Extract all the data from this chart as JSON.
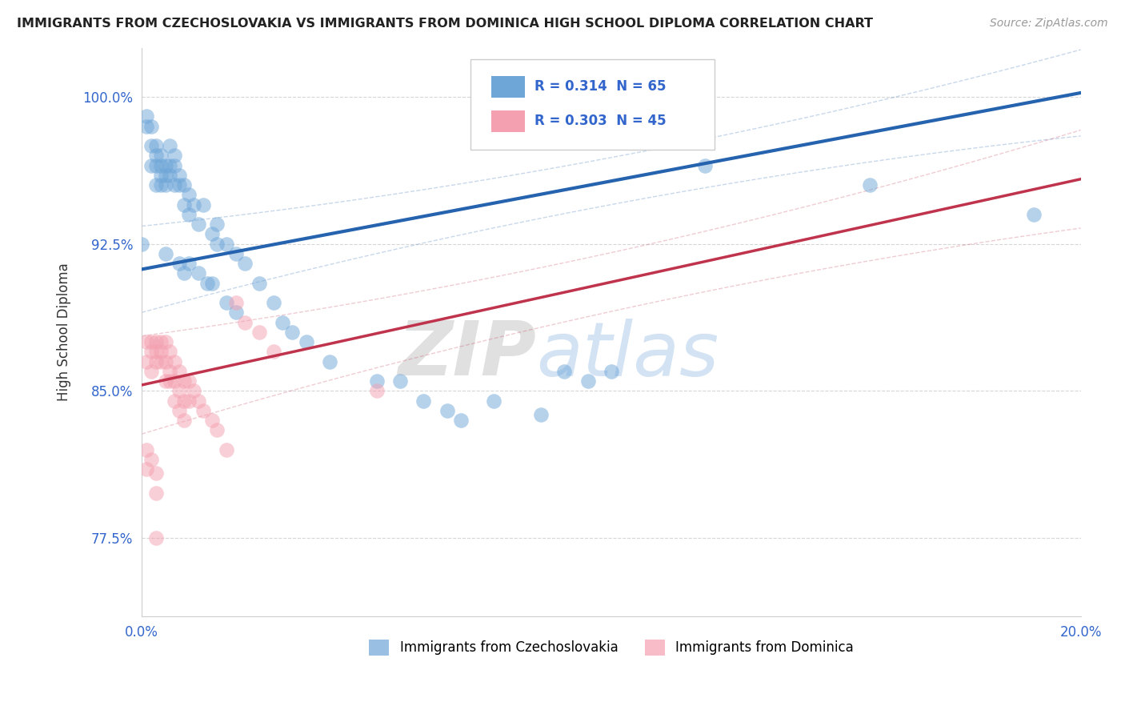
{
  "title": "IMMIGRANTS FROM CZECHOSLOVAKIA VS IMMIGRANTS FROM DOMINICA HIGH SCHOOL DIPLOMA CORRELATION CHART",
  "source": "Source: ZipAtlas.com",
  "ylabel": "High School Diploma",
  "xlabel": "",
  "xlim": [
    0.0,
    0.2
  ],
  "ylim": [
    0.735,
    1.025
  ],
  "ytick_labels": [
    "77.5%",
    "85.0%",
    "92.5%",
    "100.0%"
  ],
  "yticks": [
    0.775,
    0.85,
    0.925,
    1.0
  ],
  "legend1_label": "Immigrants from Czechoslovakia",
  "legend2_label": "Immigrants from Dominica",
  "r1": 0.314,
  "n1": 65,
  "r2": 0.303,
  "n2": 45,
  "blue_color": "#6EA6D8",
  "pink_color": "#F4A0B0",
  "blue_line_color": "#2563AE",
  "pink_line_color": "#C0334D",
  "ci_blue_color": "#7ABCE8",
  "ci_pink_color": "#F0A0B0",
  "watermark_zip": "ZIP",
  "watermark_atlas": "atlas",
  "blue_scatter": [
    [
      0.001,
      0.99
    ],
    [
      0.001,
      0.985
    ],
    [
      0.002,
      0.975
    ],
    [
      0.002,
      0.985
    ],
    [
      0.002,
      0.965
    ],
    [
      0.003,
      0.975
    ],
    [
      0.003,
      0.97
    ],
    [
      0.003,
      0.965
    ],
    [
      0.003,
      0.955
    ],
    [
      0.004,
      0.97
    ],
    [
      0.004,
      0.965
    ],
    [
      0.004,
      0.96
    ],
    [
      0.004,
      0.955
    ],
    [
      0.005,
      0.965
    ],
    [
      0.005,
      0.96
    ],
    [
      0.005,
      0.955
    ],
    [
      0.006,
      0.975
    ],
    [
      0.006,
      0.965
    ],
    [
      0.006,
      0.96
    ],
    [
      0.007,
      0.97
    ],
    [
      0.007,
      0.965
    ],
    [
      0.007,
      0.955
    ],
    [
      0.008,
      0.96
    ],
    [
      0.008,
      0.955
    ],
    [
      0.009,
      0.955
    ],
    [
      0.009,
      0.945
    ],
    [
      0.01,
      0.95
    ],
    [
      0.01,
      0.94
    ],
    [
      0.011,
      0.945
    ],
    [
      0.012,
      0.935
    ],
    [
      0.013,
      0.945
    ],
    [
      0.015,
      0.93
    ],
    [
      0.016,
      0.935
    ],
    [
      0.016,
      0.925
    ],
    [
      0.018,
      0.925
    ],
    [
      0.02,
      0.92
    ],
    [
      0.022,
      0.915
    ],
    [
      0.025,
      0.905
    ],
    [
      0.028,
      0.895
    ],
    [
      0.03,
      0.885
    ],
    [
      0.032,
      0.88
    ],
    [
      0.035,
      0.875
    ],
    [
      0.04,
      0.865
    ],
    [
      0.05,
      0.855
    ],
    [
      0.055,
      0.855
    ],
    [
      0.06,
      0.845
    ],
    [
      0.065,
      0.84
    ],
    [
      0.068,
      0.835
    ],
    [
      0.075,
      0.845
    ],
    [
      0.085,
      0.838
    ],
    [
      0.09,
      0.86
    ],
    [
      0.095,
      0.855
    ],
    [
      0.1,
      0.86
    ],
    [
      0.0,
      0.925
    ],
    [
      0.005,
      0.92
    ],
    [
      0.008,
      0.915
    ],
    [
      0.009,
      0.91
    ],
    [
      0.01,
      0.915
    ],
    [
      0.012,
      0.91
    ],
    [
      0.014,
      0.905
    ],
    [
      0.015,
      0.905
    ],
    [
      0.018,
      0.895
    ],
    [
      0.02,
      0.89
    ],
    [
      0.12,
      0.965
    ],
    [
      0.155,
      0.955
    ],
    [
      0.19,
      0.94
    ]
  ],
  "pink_scatter": [
    [
      0.001,
      0.875
    ],
    [
      0.001,
      0.865
    ],
    [
      0.002,
      0.875
    ],
    [
      0.002,
      0.87
    ],
    [
      0.002,
      0.86
    ],
    [
      0.003,
      0.875
    ],
    [
      0.003,
      0.87
    ],
    [
      0.003,
      0.865
    ],
    [
      0.004,
      0.875
    ],
    [
      0.004,
      0.87
    ],
    [
      0.004,
      0.865
    ],
    [
      0.005,
      0.875
    ],
    [
      0.005,
      0.865
    ],
    [
      0.005,
      0.855
    ],
    [
      0.006,
      0.87
    ],
    [
      0.006,
      0.86
    ],
    [
      0.006,
      0.855
    ],
    [
      0.007,
      0.865
    ],
    [
      0.007,
      0.855
    ],
    [
      0.007,
      0.845
    ],
    [
      0.008,
      0.86
    ],
    [
      0.008,
      0.85
    ],
    [
      0.008,
      0.84
    ],
    [
      0.009,
      0.855
    ],
    [
      0.009,
      0.845
    ],
    [
      0.009,
      0.835
    ],
    [
      0.01,
      0.855
    ],
    [
      0.01,
      0.845
    ],
    [
      0.011,
      0.85
    ],
    [
      0.012,
      0.845
    ],
    [
      0.013,
      0.84
    ],
    [
      0.015,
      0.835
    ],
    [
      0.016,
      0.83
    ],
    [
      0.018,
      0.82
    ],
    [
      0.02,
      0.895
    ],
    [
      0.022,
      0.885
    ],
    [
      0.025,
      0.88
    ],
    [
      0.028,
      0.87
    ],
    [
      0.05,
      0.85
    ],
    [
      0.001,
      0.82
    ],
    [
      0.001,
      0.81
    ],
    [
      0.002,
      0.815
    ],
    [
      0.003,
      0.808
    ],
    [
      0.003,
      0.798
    ],
    [
      0.003,
      0.775
    ]
  ]
}
